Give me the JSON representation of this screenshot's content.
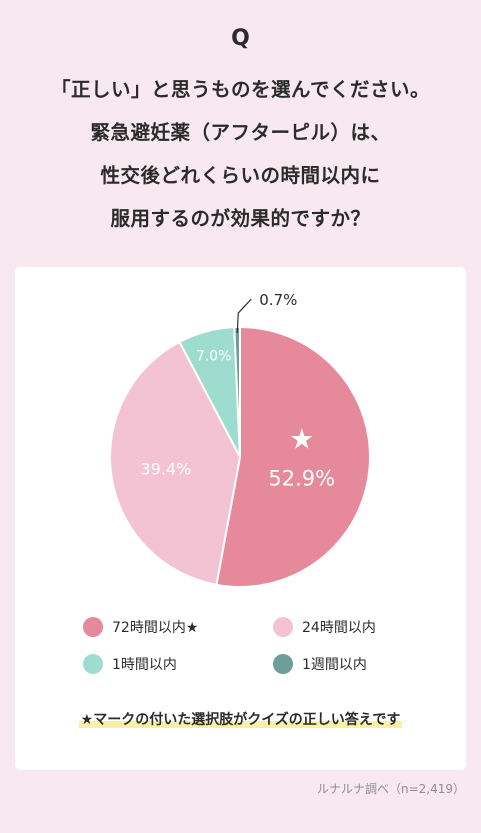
{
  "header": {
    "q_mark": "Q",
    "question_lines": [
      "「正しい」と思うものを選んでください。",
      "緊急避妊薬（アフターピル）は、",
      "性交後どれくらいの時間以内に",
      "服用するのが効果的ですか？"
    ]
  },
  "chart_data": {
    "type": "pie",
    "slices": [
      {
        "label": "72時間以内★",
        "value": 52.9,
        "display": "52.9%",
        "color": "#e5899b",
        "star": true
      },
      {
        "label": "24時間以内",
        "value": 39.4,
        "display": "39.4%",
        "color": "#f3c3d4"
      },
      {
        "label": "1時間以内",
        "value": 7.0,
        "display": "7.0%",
        "color": "#9fdcd0"
      },
      {
        "label": "1週間以内",
        "value": 0.7,
        "display": "0.7%",
        "color": "#6d9f98"
      }
    ],
    "legend_position": "bottom"
  },
  "note": "★マークの付いた選択肢がクイズの正しい答えです",
  "source": "ルナルナ調べ（n=2,419）"
}
